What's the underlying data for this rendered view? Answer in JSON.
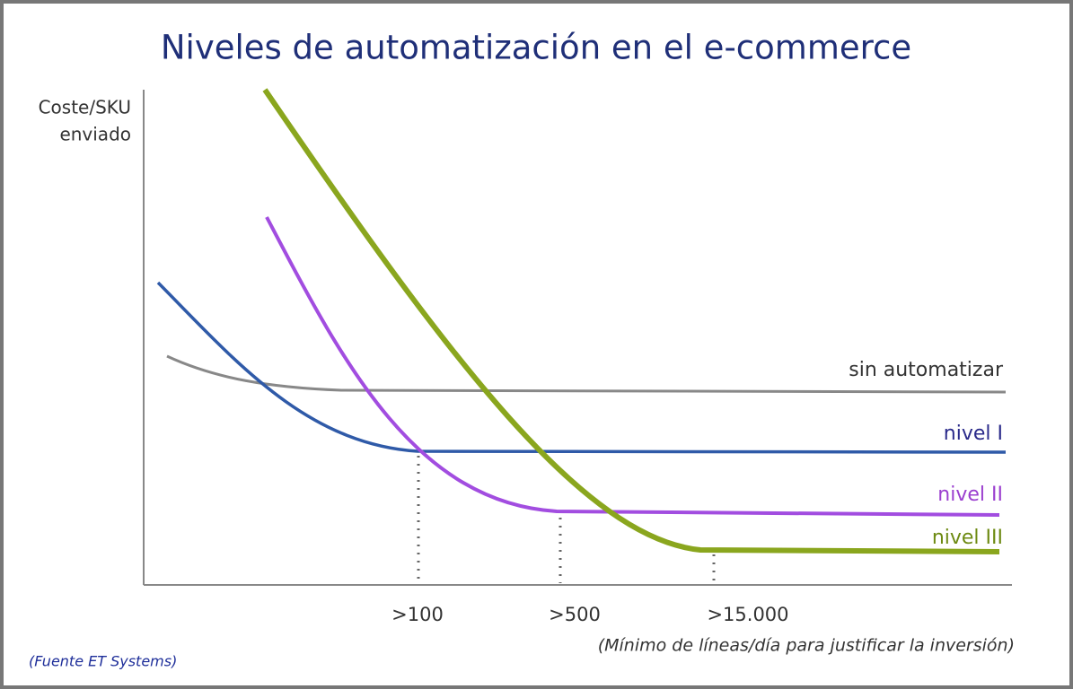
{
  "title": "Niveles de automatización en el e-commerce",
  "y_axis_label": [
    "Coste/SKU",
    "enviado"
  ],
  "series_labels": [
    "sin automatizar",
    "nivel I",
    "nivel II",
    "nivel III"
  ],
  "x_labels": [
    ">100",
    ">500",
    ">15.000"
  ],
  "x_axis_label": "(Mínimo de líneas/día para justificar la inversión)",
  "source": "(Fuente ET Systems)"
}
